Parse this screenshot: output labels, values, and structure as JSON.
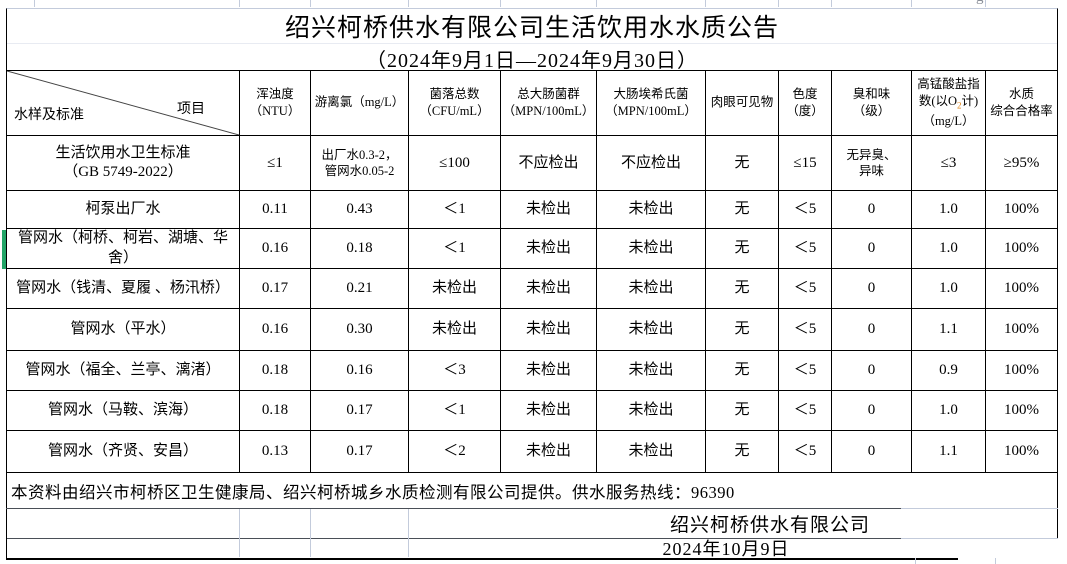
{
  "title": "绍兴柯桥供水有限公司生活饮用水水质公告",
  "period": "（2024年9月1日—2024年9月30日）",
  "top_strip": {
    "fragment": "g"
  },
  "header": {
    "corner": {
      "primary": "水样及标准",
      "secondary": "项目"
    },
    "columns": [
      {
        "lines": [
          "浑浊度",
          "（NTU）"
        ]
      },
      {
        "lines": [
          "游离氯（mg/L）"
        ]
      },
      {
        "lines": [
          "菌落总数",
          "（CFU/mL）"
        ]
      },
      {
        "lines": [
          "总大肠菌群",
          "（MPN/100mL）"
        ]
      },
      {
        "lines": [
          "大肠埃希氏菌",
          "（MPN/100mL）"
        ]
      },
      {
        "lines": [
          "肉眼可见物"
        ]
      },
      {
        "lines": [
          "色度",
          "（度）"
        ]
      },
      {
        "lines": [
          "臭和味",
          "（级）"
        ]
      },
      {
        "lines": [
          "高锰酸盐指",
          "数(以O2计)",
          "（mg/L）"
        ]
      },
      {
        "lines": [
          "水质",
          "综合合格率"
        ]
      }
    ]
  },
  "rows": [
    {
      "label_lines": [
        "生活饮用水卫生标准",
        "（GB 5749-2022）"
      ],
      "values": [
        "≤1",
        [
          "出厂水0.3-2，",
          "管网水0.05-2"
        ],
        "≤100",
        "不应检出",
        "不应检出",
        "无",
        "≤15",
        [
          "无异臭、",
          "异味"
        ],
        "≤3",
        "≥95%"
      ]
    },
    {
      "label_lines": [
        "柯泵出厂水"
      ],
      "values": [
        "0.11",
        "0.43",
        "＜1",
        "未检出",
        "未检出",
        "无",
        "＜5",
        "0",
        "1.0",
        "100%"
      ]
    },
    {
      "label_lines": [
        "管网水（柯桥、柯岩、湖塘、华舍）"
      ],
      "values": [
        "0.16",
        "0.18",
        "＜1",
        "未检出",
        "未检出",
        "无",
        "＜5",
        "0",
        "1.0",
        "100%"
      ]
    },
    {
      "label_lines": [
        "管网水（钱清、夏履 、杨汛桥）"
      ],
      "values": [
        "0.17",
        "0.21",
        "未检出",
        "未检出",
        "未检出",
        "无",
        "＜5",
        "0",
        "1.0",
        "100%"
      ]
    },
    {
      "label_lines": [
        "管网水（平水）"
      ],
      "values": [
        "0.16",
        "0.30",
        "未检出",
        "未检出",
        "未检出",
        "无",
        "＜5",
        "0",
        "1.1",
        "100%"
      ]
    },
    {
      "label_lines": [
        "管网水（福全、兰亭、漓渚）"
      ],
      "values": [
        "0.18",
        "0.16",
        "＜3",
        "未检出",
        "未检出",
        "无",
        "＜5",
        "0",
        "0.9",
        "100%"
      ]
    },
    {
      "label_lines": [
        "管网水（马鞍、滨海）"
      ],
      "values": [
        "0.18",
        "0.17",
        "＜1",
        "未检出",
        "未检出",
        "无",
        "＜5",
        "0",
        "1.0",
        "100%"
      ]
    },
    {
      "label_lines": [
        "管网水（齐贤、安昌）"
      ],
      "values": [
        "0.13",
        "0.17",
        "＜2",
        "未检出",
        "未检出",
        "无",
        "＜5",
        "0",
        "1.1",
        "100%"
      ]
    }
  ],
  "footer": {
    "note": "本资料由绍兴市柯桥区卫生健康局、绍兴柯桥城乡水质检测有限公司提供。供水服务热线：96390",
    "company": "绍兴柯桥供水有限公司",
    "date": "2024年10月9日"
  },
  "colors": {
    "grid_light": "#c3cbdb",
    "selection_green": "#22a567",
    "subscript_accent": "#e0861a"
  }
}
